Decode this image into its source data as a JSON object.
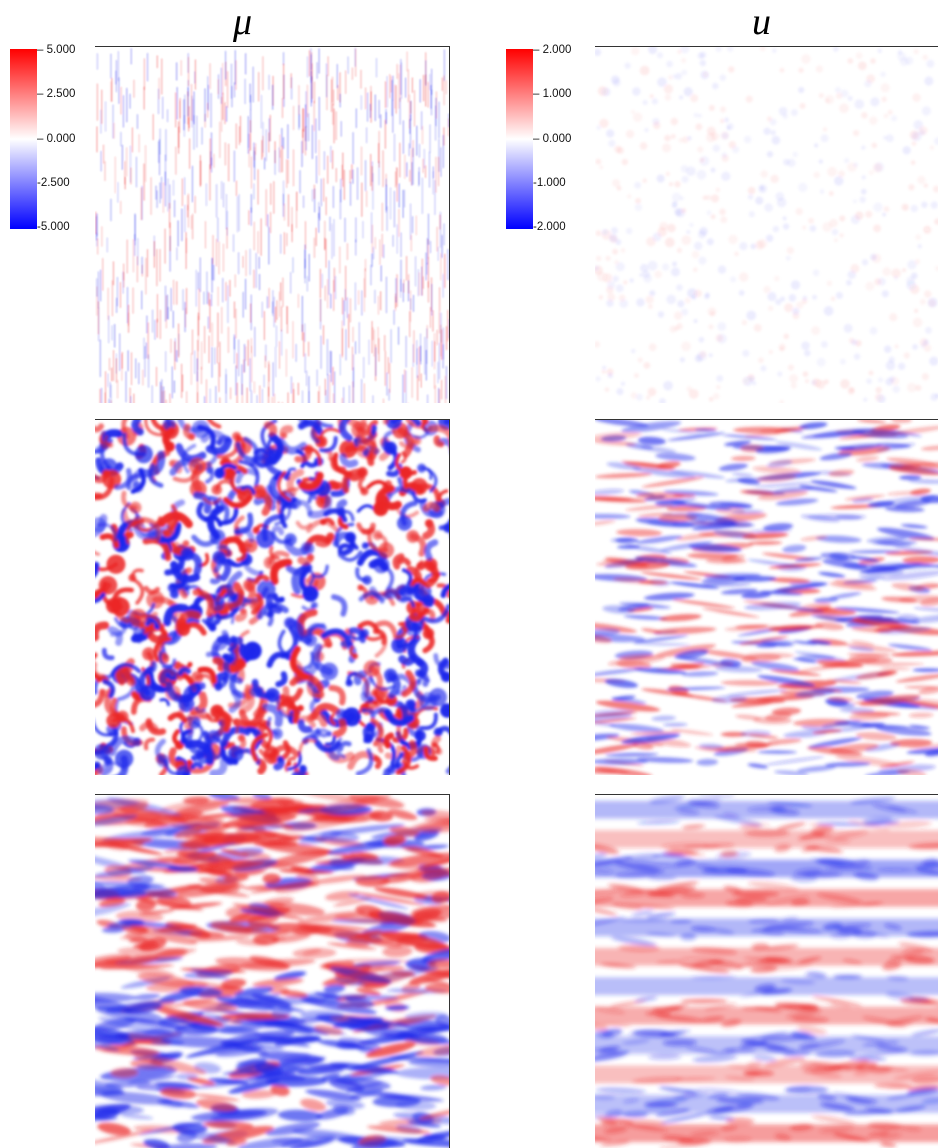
{
  "columns": [
    {
      "title": "μ",
      "colorbar": {
        "max": "5.000",
        "upper": "2.500",
        "mid": "0.000",
        "lower": "-2.500",
        "min": "-5.000",
        "colors": [
          "#ff0000",
          "#ffffff",
          "#0000ff"
        ]
      }
    },
    {
      "title": "u",
      "colorbar": {
        "max": "2.000",
        "upper": "1.000",
        "mid": "0.000",
        "lower": "-1.000",
        "min": "-2.000",
        "colors": [
          "#ff0000",
          "#ffffff",
          "#0000ff"
        ]
      }
    }
  ],
  "panels": [
    {
      "field": "mu",
      "row": 1,
      "pattern": "vertical-fine-streaks",
      "intensity": 0.25
    },
    {
      "field": "u",
      "row": 1,
      "pattern": "faint-uniform",
      "intensity": 0.04
    },
    {
      "field": "mu",
      "row": 2,
      "pattern": "isotropic-swirls",
      "intensity": 0.95
    },
    {
      "field": "u",
      "row": 2,
      "pattern": "horizontal-wavy",
      "intensity": 0.45
    },
    {
      "field": "mu",
      "row": 3,
      "pattern": "horizontal-bands",
      "intensity": 0.65
    },
    {
      "field": "u",
      "row": 3,
      "pattern": "horizontal-zonal-jets",
      "intensity": 0.8
    }
  ]
}
